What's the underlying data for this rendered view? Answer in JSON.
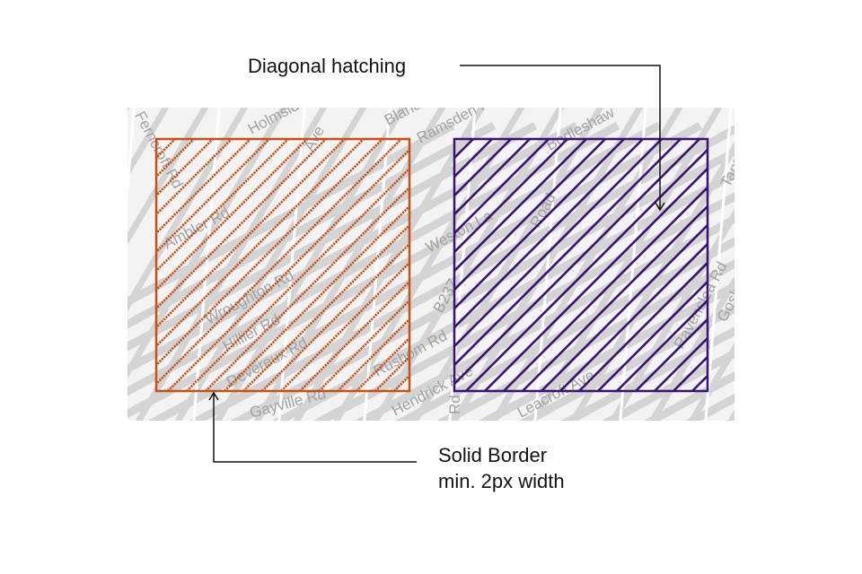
{
  "annotations": {
    "hatching_label": "Diagonal hatching",
    "border_label_line1": "Solid Border",
    "border_label_line2": "min. 2px width"
  },
  "map": {
    "street_labels": [
      "Ferncroft Rd",
      "Holmside",
      "Blandfield Rd",
      "Ramsden Rd",
      "Bodleshaw",
      "Ave",
      "Ambler Rd",
      "Weston La",
      "Wroughton Rd",
      "Hillier Rd",
      "Devereux Rd",
      "Gayville Rd",
      "Rushom Rd",
      "Hendrick Ave",
      "Leacroft Ave",
      "B237",
      "Road",
      "Rd",
      "Gosberton Rd",
      "Tantallon Rd",
      "Ravenslea Rd"
    ]
  },
  "areas": [
    {
      "name": "orange-area",
      "border_color": "#c4501a",
      "hatch_color": "#c4501a",
      "border_style": "dotted-hatch"
    },
    {
      "name": "purple-area",
      "border_color": "#3a1270",
      "hatch_color": "#3a1270",
      "border_style": "solid-hatch"
    }
  ],
  "colors": {
    "map_background": "#f3f3f3",
    "map_road": "#d4d4d4",
    "arrow": "#111111"
  }
}
